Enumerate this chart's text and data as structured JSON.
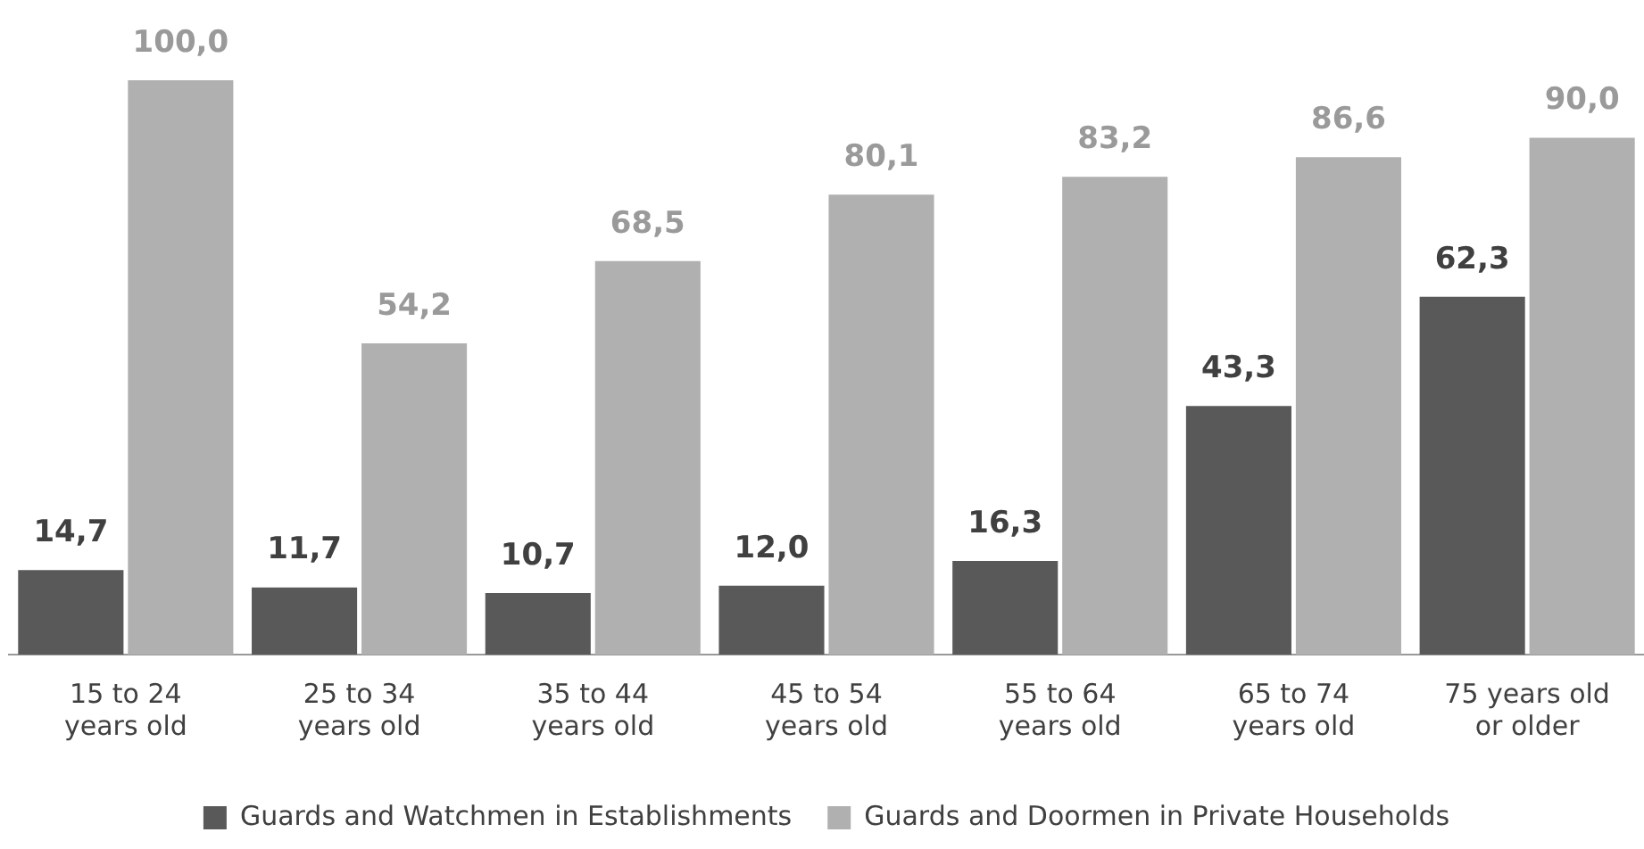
{
  "chart_data": {
    "type": "bar",
    "categories": [
      "15 to 24\nyears old",
      "25 to 34\nyears old",
      "35 to 44\nyears old",
      "45 to 54\nyears old",
      "55 to 64\nyears old",
      "65 to 74\nyears old",
      "75 years old\nor older"
    ],
    "series": [
      {
        "name": "Guards and Watchmen in Establishments",
        "color": "#595959",
        "values": [
          14.7,
          11.7,
          10.7,
          12.0,
          16.3,
          43.3,
          62.3
        ],
        "value_labels": [
          "14,7",
          "11,7",
          "10,7",
          "12,0",
          "16,3",
          "43,3",
          "62,3"
        ]
      },
      {
        "name": "Guards and Doormen in Private Households",
        "color": "#b0b0b0",
        "values": [
          100.0,
          54.2,
          68.5,
          80.1,
          83.2,
          86.6,
          90.0
        ],
        "value_labels": [
          "100,0",
          "54,2",
          "68,5",
          "80,1",
          "83,2",
          "86,6",
          "90,0"
        ]
      }
    ],
    "grid": false,
    "legend": "bottom"
  }
}
